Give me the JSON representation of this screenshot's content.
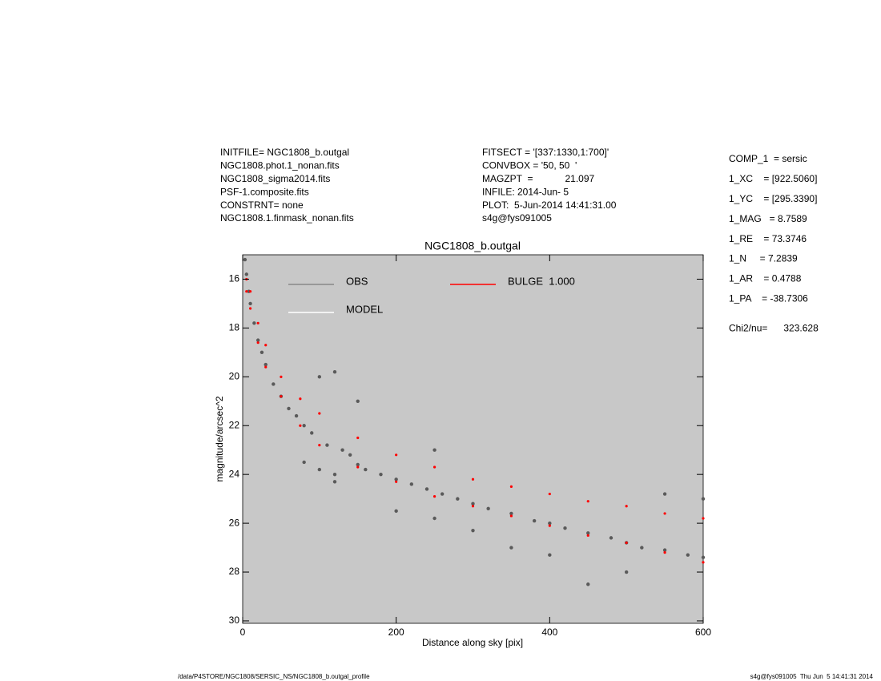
{
  "chart_data": {
    "type": "scatter",
    "title": "NGC1808_b.outgal",
    "xlabel": "Distance along sky [pix]",
    "ylabel": "magnitude/arcsec^2",
    "xlim": [
      0,
      600
    ],
    "xticks": [
      0,
      200,
      400,
      600
    ],
    "ylim": [
      15,
      30.1
    ],
    "yticks": [
      16,
      18,
      20,
      22,
      24,
      26,
      28,
      30
    ],
    "y_reversed": true,
    "background": "#c8c8c8",
    "series": [
      {
        "name": "OBS",
        "color": "#5a5a5a",
        "x": [
          3,
          5,
          8,
          10,
          15,
          20,
          25,
          30,
          40,
          50,
          60,
          70,
          80,
          90,
          100,
          100,
          110,
          120,
          120,
          130,
          140,
          150,
          150,
          160,
          180,
          200,
          200,
          220,
          240,
          250,
          260,
          280,
          300,
          300,
          320,
          350,
          380,
          400,
          400,
          420,
          450,
          480,
          500,
          500,
          520,
          550,
          580,
          600,
          600,
          120,
          80,
          250,
          350,
          450,
          550
        ],
        "values": [
          15.2,
          15.8,
          16.5,
          17,
          17.8,
          18.5,
          19,
          19.5,
          20.3,
          20.8,
          21.3,
          21.6,
          22,
          22.3,
          20,
          23.8,
          22.8,
          19.8,
          24,
          23,
          23.2,
          23.6,
          21,
          23.8,
          24,
          24.2,
          25.5,
          24.4,
          24.6,
          23,
          24.8,
          25,
          25.2,
          26.3,
          25.4,
          25.6,
          25.9,
          26,
          27.3,
          26.2,
          26.4,
          26.6,
          26.8,
          28,
          27,
          27.1,
          27.3,
          27.4,
          25,
          24.3,
          23.5,
          25.8,
          27,
          28.5,
          24.8
        ]
      },
      {
        "name": "MODEL",
        "color": "#ffffff",
        "x": [],
        "values": []
      },
      {
        "name": "BULGE  1.000",
        "color": "#ff0000",
        "x": [
          5,
          10,
          20,
          30,
          50,
          75,
          100,
          150,
          200,
          250,
          300,
          350,
          400,
          450,
          500,
          550,
          600,
          5,
          10,
          20,
          30,
          50,
          75,
          100,
          150,
          200,
          250,
          300,
          350,
          400,
          450,
          500,
          550,
          600
        ],
        "values": [
          16,
          16.5,
          17.8,
          18.7,
          20,
          20.9,
          21.5,
          22.5,
          23.2,
          23.7,
          24.2,
          24.5,
          24.8,
          25.1,
          25.3,
          25.6,
          25.8,
          16.5,
          17.2,
          18.6,
          19.6,
          20.8,
          22,
          22.8,
          23.7,
          24.3,
          24.9,
          25.3,
          25.7,
          26.1,
          26.5,
          26.8,
          27.2,
          27.6
        ]
      }
    ]
  },
  "header_left": [
    "INITFILE= NGC1808_b.outgal",
    "NGC1808.phot.1_nonan.fits",
    "NGC1808_sigma2014.fits",
    "PSF-1.composite.fits",
    "CONSTRNT= none",
    "NGC1808.1.finmask_nonan.fits"
  ],
  "header_mid": [
    "FITSECT = '[337:1330,1:700]'",
    "CONVBOX = '50, 50  '",
    "MAGZPT  =            21.097",
    "INFILE: 2014-Jun- 5",
    "PLOT:  5-Jun-2014 14:41:31.00",
    "s4g@fys091005"
  ],
  "params": [
    "COMP_1  = sersic",
    "1_XC    = [922.5060]",
    "1_YC    = [295.3390]",
    "1_MAG   = 8.7589",
    "1_RE    = 73.3746",
    "1_N     = 7.2839",
    "1_AR    = 0.4788",
    "1_PA    = -38.7306",
    "Chi2/nu=      323.628"
  ],
  "footer_left": "/data/P4STORE/NGC1808/SERSIC_NS/NGC1808_b.outgal_profile",
  "footer_right": "s4g@fys091005  Thu Jun  5 14:41:31 2014"
}
